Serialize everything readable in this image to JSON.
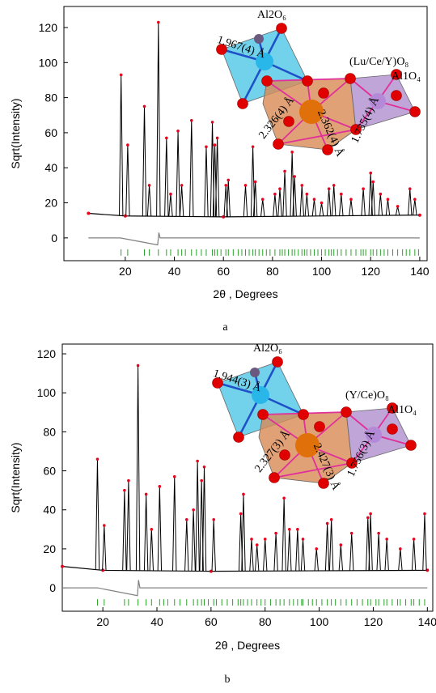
{
  "chart_data": [
    {
      "type": "rietveld",
      "caption": "a",
      "xlabel": "2θ , Degrees",
      "ylabel": "Sqrt(Intensity)",
      "xlim": [
        -5,
        143
      ],
      "ylim": [
        -13,
        132
      ],
      "xticks": [
        20,
        40,
        60,
        80,
        100,
        120,
        140
      ],
      "yticks": [
        0,
        20,
        40,
        60,
        80,
        100,
        120
      ],
      "annotations": [
        "Al2O₆",
        "1.967(4) Å",
        "(Lu/Ce/Y)O₈",
        "Al1O₄",
        "2.326(4) Å",
        "2.362(4) Å",
        "1.735(4) Å"
      ],
      "series": [
        {
          "color": "#000000",
          "x": [
            5,
            20,
            60,
            140
          ],
          "values": [
            14,
            12.5,
            12,
            13
          ]
        },
        {
          "color": "#e8001c",
          "x": [
            18.3,
            21,
            27.8,
            29.8,
            33.5,
            36.8,
            38.5,
            41.5,
            43,
            47,
            53,
            55.5,
            56.5,
            57.5,
            61,
            62,
            69,
            72,
            73,
            76,
            81,
            83,
            85,
            88,
            89,
            92,
            94,
            97,
            100,
            103,
            105,
            108,
            112,
            117,
            120,
            121,
            124,
            127,
            131,
            136,
            138
          ],
          "values": [
            93,
            53,
            75,
            30,
            123,
            57,
            25,
            61,
            30,
            67,
            52,
            66,
            53,
            57,
            30,
            33,
            30,
            52,
            32,
            22,
            25,
            28,
            38,
            49,
            35,
            30,
            25,
            22,
            20,
            28,
            30,
            25,
            22,
            28,
            37,
            32,
            25,
            22,
            18,
            28,
            22
          ]
        },
        {
          "color": "#808080",
          "x": [
            5,
            18,
            33.2,
            33.7,
            34.2,
            60,
            140
          ],
          "values": [
            0,
            0,
            -4,
            3,
            0,
            0,
            0
          ]
        }
      ],
      "reflections": {
        "color": "#2ca02c",
        "x": [
          18.3,
          21,
          27.8,
          29.8,
          33.5,
          36.8,
          38.5,
          41.5,
          43,
          44.5,
          47,
          49,
          51,
          53,
          55.5,
          56.5,
          57.5,
          59,
          61,
          62,
          64,
          66,
          67.5,
          69,
          70.5,
          72,
          73,
          74.5,
          76,
          77.5,
          79,
          81,
          83,
          84,
          85,
          86.5,
          88,
          89,
          90.5,
          92,
          93,
          94,
          95.5,
          97,
          98.5,
          100,
          101.5,
          103,
          104,
          105,
          106.5,
          108,
          110,
          112,
          114,
          116,
          117,
          118,
          120,
          121,
          122.5,
          124,
          125.5,
          127,
          129,
          131,
          133,
          134.5,
          136,
          138,
          139.5
        ]
      }
    },
    {
      "type": "rietveld",
      "caption": "b",
      "xlabel": "2θ , Degrees",
      "ylabel": "Sqrt(Intensity)",
      "xlim": [
        5,
        142
      ],
      "ylim": [
        -12,
        125
      ],
      "xticks": [
        20,
        40,
        60,
        80,
        100,
        120,
        140
      ],
      "yticks": [
        0,
        20,
        40,
        60,
        80,
        100,
        120
      ],
      "annotations": [
        "Al2O₆",
        "1.944(3) Å",
        "(Y/Ce)O₈",
        "Al1O₄",
        "2.327(3) Å",
        "2.427(3) Å",
        "1.756(3) Å"
      ],
      "series": [
        {
          "color": "#000000",
          "x": [
            5,
            20,
            60,
            140
          ],
          "values": [
            11,
            9,
            8.5,
            9
          ]
        },
        {
          "color": "#e8001c",
          "x": [
            18,
            20.5,
            28,
            29.5,
            33,
            36,
            38,
            41,
            46.5,
            51,
            53.5,
            55,
            56.5,
            57.5,
            61,
            71,
            72,
            75,
            77,
            80,
            84,
            87,
            89,
            92,
            94,
            99,
            103,
            104.5,
            108,
            112,
            118,
            119,
            122,
            125,
            130,
            135,
            139
          ],
          "values": [
            66,
            32,
            50,
            55,
            114,
            48,
            30,
            52,
            57,
            35,
            40,
            65,
            55,
            62,
            35,
            38,
            48,
            25,
            22,
            25,
            28,
            46,
            30,
            30,
            25,
            20,
            33,
            35,
            22,
            28,
            36,
            38,
            28,
            25,
            20,
            25,
            38
          ]
        },
        {
          "color": "#808080",
          "x": [
            5,
            18,
            32.8,
            33.2,
            33.7,
            60,
            140
          ],
          "values": [
            0,
            0,
            -4,
            4,
            0,
            0,
            0
          ]
        }
      ],
      "reflections": {
        "color": "#2ca02c",
        "x": [
          18,
          20.5,
          28,
          29.5,
          33,
          36,
          38,
          41,
          42.5,
          44,
          46.5,
          48.5,
          51,
          53.5,
          55,
          56.5,
          57.5,
          59,
          61,
          62,
          64,
          66,
          68,
          70,
          71,
          72,
          73.5,
          75,
          77,
          78.5,
          80,
          82,
          84,
          85.5,
          87,
          89,
          90.5,
          92,
          93.5,
          94,
          96,
          97.5,
          99,
          101,
          103,
          104.5,
          106,
          108,
          110,
          112,
          114,
          116,
          118,
          119,
          121,
          122,
          124,
          125,
          127,
          129,
          130,
          132,
          134,
          135,
          137,
          139
        ]
      }
    }
  ]
}
